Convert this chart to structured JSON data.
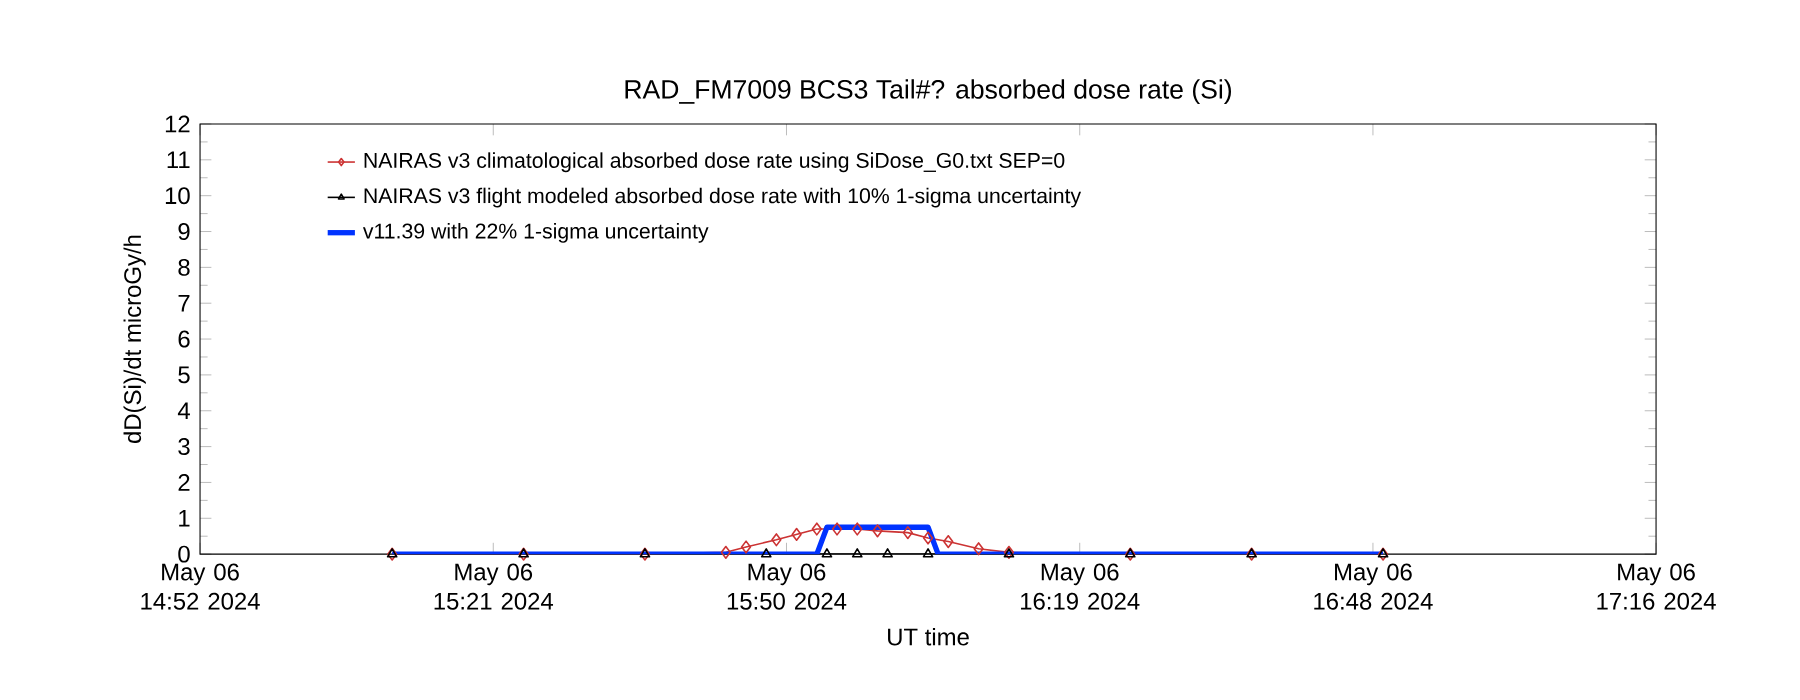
{
  "chart_data": {
    "type": "line",
    "title": "RAD_FM7009  BCS3 Tail#? absorbed dose rate (Si)",
    "xlabel": "UT time",
    "ylabel": "dD(Si)/dt microGy/h",
    "xlim": [
      "2024-05-06T14:52",
      "2024-05-06T17:16"
    ],
    "ylim": [
      0,
      12
    ],
    "yticks": [
      0,
      1,
      2,
      3,
      4,
      5,
      6,
      7,
      8,
      9,
      10,
      11,
      12
    ],
    "xticks": [
      {
        "value": "2024-05-06T14:52",
        "label": "May 06 14:52 2024"
      },
      {
        "value": "2024-05-06T15:21",
        "label": "May 06 15:21 2024"
      },
      {
        "value": "2024-05-06T15:50",
        "label": "May 06 15:50 2024"
      },
      {
        "value": "2024-05-06T16:19",
        "label": "May 06 16:19 2024"
      },
      {
        "value": "2024-05-06T16:48",
        "label": "May 06 16:48 2024"
      },
      {
        "value": "2024-05-06T17:16",
        "label": "May 06 17:16 2024"
      }
    ],
    "legend": "top",
    "grid": false,
    "series": [
      {
        "name": "NAIRAS v3 climatological absorbed dose rate using SiDose_G0.txt SEP=0",
        "color": "#cc3333",
        "marker": "diamond",
        "x": [
          "2024-05-06T15:11",
          "2024-05-06T15:24",
          "2024-05-06T15:36",
          "2024-05-06T15:44",
          "2024-05-06T15:46",
          "2024-05-06T15:49",
          "2024-05-06T15:51",
          "2024-05-06T15:53",
          "2024-05-06T15:55",
          "2024-05-06T15:57",
          "2024-05-06T15:59",
          "2024-05-06T16:02",
          "2024-05-06T16:04",
          "2024-05-06T16:06",
          "2024-05-06T16:09",
          "2024-05-06T16:12",
          "2024-05-06T16:24",
          "2024-05-06T16:36",
          "2024-05-06T16:49"
        ],
        "values": [
          0,
          0,
          0,
          0.05,
          0.2,
          0.4,
          0.55,
          0.7,
          0.7,
          0.7,
          0.65,
          0.6,
          0.45,
          0.35,
          0.15,
          0.05,
          0,
          0,
          0
        ]
      },
      {
        "name": "NAIRAS v3 flight modeled absorbed dose rate with 10% 1-sigma uncertainty",
        "color": "#000000",
        "marker": "triangle",
        "x": [
          "2024-05-06T15:11",
          "2024-05-06T15:24",
          "2024-05-06T15:36",
          "2024-05-06T15:48",
          "2024-05-06T15:54",
          "2024-05-06T15:57",
          "2024-05-06T16:00",
          "2024-05-06T16:04",
          "2024-05-06T16:12",
          "2024-05-06T16:24",
          "2024-05-06T16:36",
          "2024-05-06T16:49"
        ],
        "values": [
          0,
          0,
          0,
          0,
          0,
          0,
          0,
          0,
          0,
          0,
          0,
          0
        ]
      },
      {
        "name": "v11.39 with 22% 1-sigma uncertainty",
        "color": "#0033ff",
        "marker": "none",
        "x": [
          "2024-05-06T15:11",
          "2024-05-06T15:53",
          "2024-05-06T15:54",
          "2024-05-06T16:04",
          "2024-05-06T16:05",
          "2024-05-06T16:49"
        ],
        "values": [
          0,
          0,
          0.75,
          0.75,
          0,
          0
        ]
      }
    ]
  }
}
